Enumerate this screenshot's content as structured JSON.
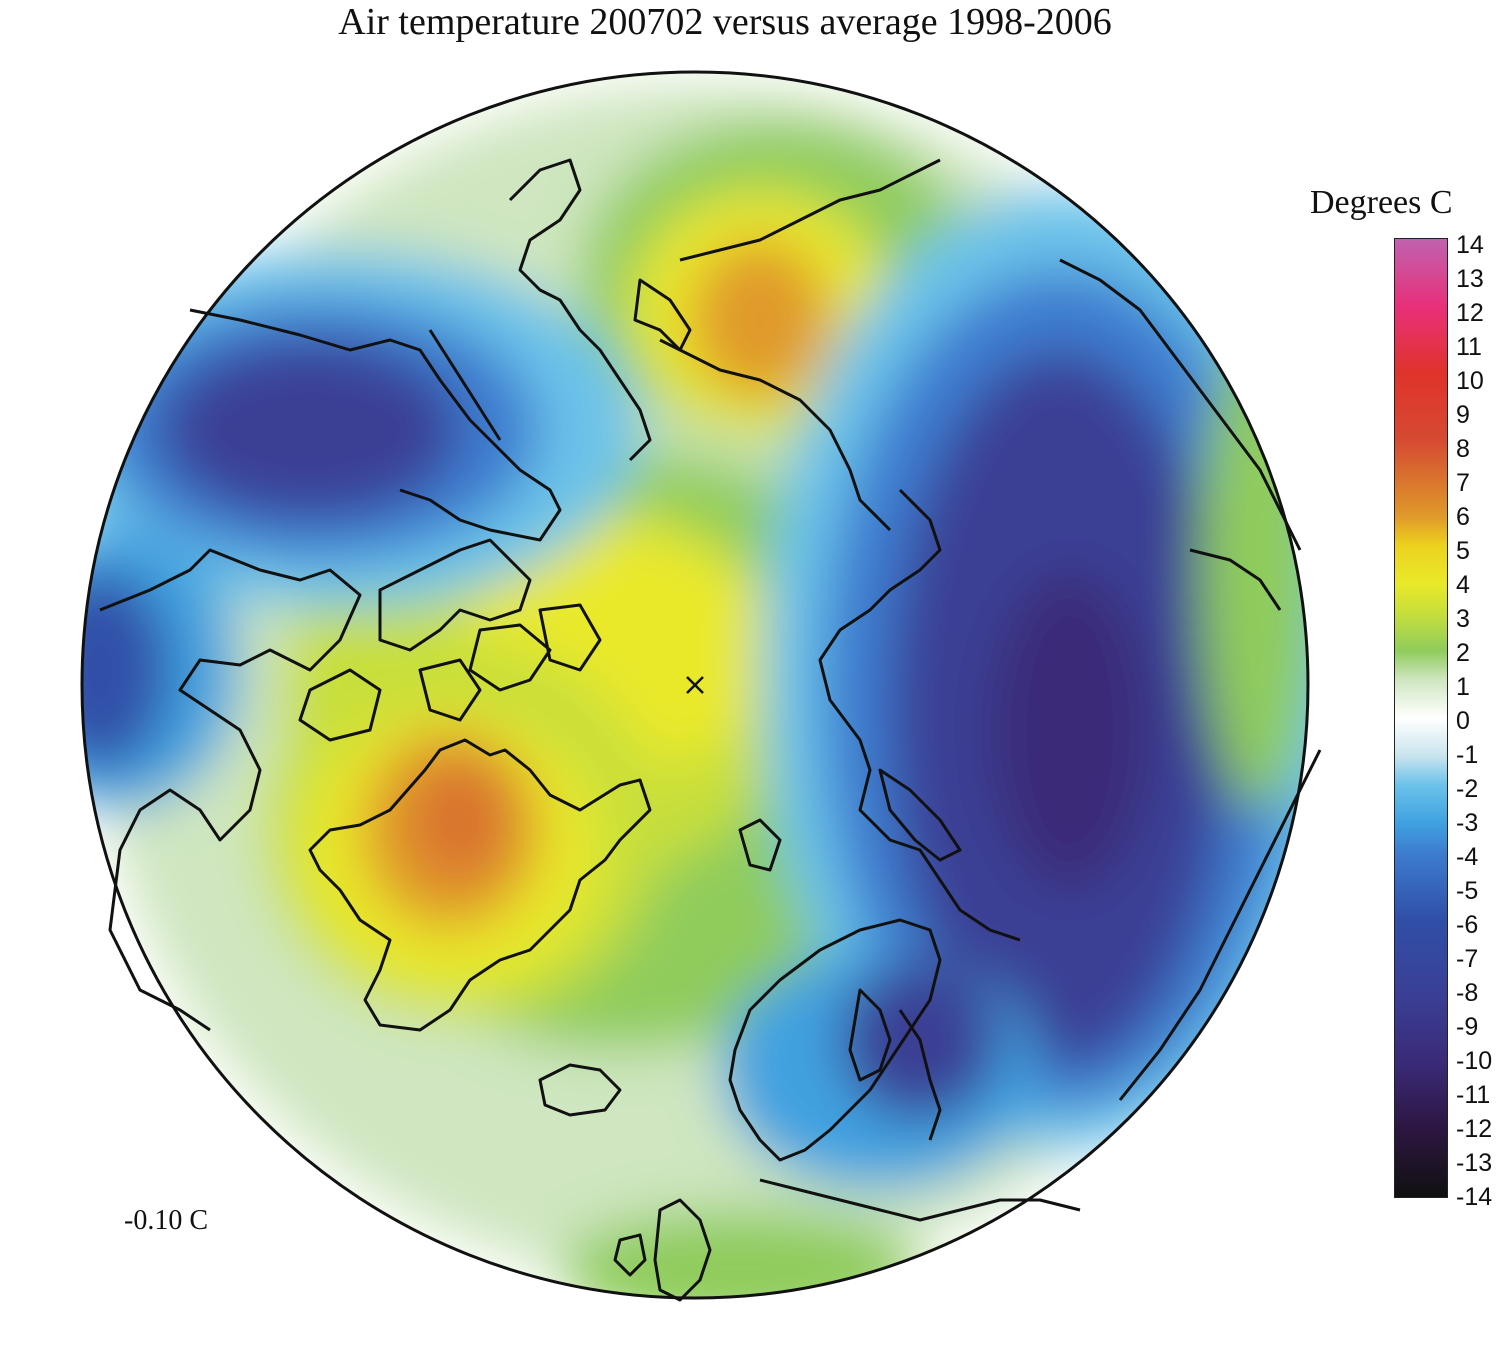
{
  "title": "Air temperature 200702 versus average 1998-2006",
  "global_mean": "-0.10 C",
  "legend": {
    "title": "Degrees C",
    "ticks": [
      "14",
      "13",
      "12",
      "11",
      "10",
      "9",
      "8",
      "7",
      "6",
      "5",
      "4",
      "3",
      "2",
      "1",
      "0",
      "-1",
      "-2",
      "-3",
      "-4",
      "-5",
      "-6",
      "-7",
      "-8",
      "-9",
      "-10",
      "-11",
      "-12",
      "-13",
      "-14"
    ]
  },
  "colors": {
    "neg14": "#101010",
    "neg12": "#2c1640",
    "neg10": "#3a2a78",
    "neg8": "#3a3f95",
    "neg6": "#304fa8",
    "neg4": "#3d7dd0",
    "neg3": "#3fa1e0",
    "neg2": "#6bc2ea",
    "neg1": "#c8e4ee",
    "zero": "#ffffff",
    "pos1": "#cfe6c0",
    "pos2": "#8fcc5c",
    "pos3": "#c8df3a",
    "pos4": "#e9e929",
    "pos5": "#ecd21e",
    "pos6": "#e09a2a",
    "pos7": "#d9722e",
    "pos8": "#d64a32",
    "pos10": "#e0332b",
    "pos12": "#e8307a",
    "pos14": "#c062b0",
    "coast": "#111111"
  }
}
